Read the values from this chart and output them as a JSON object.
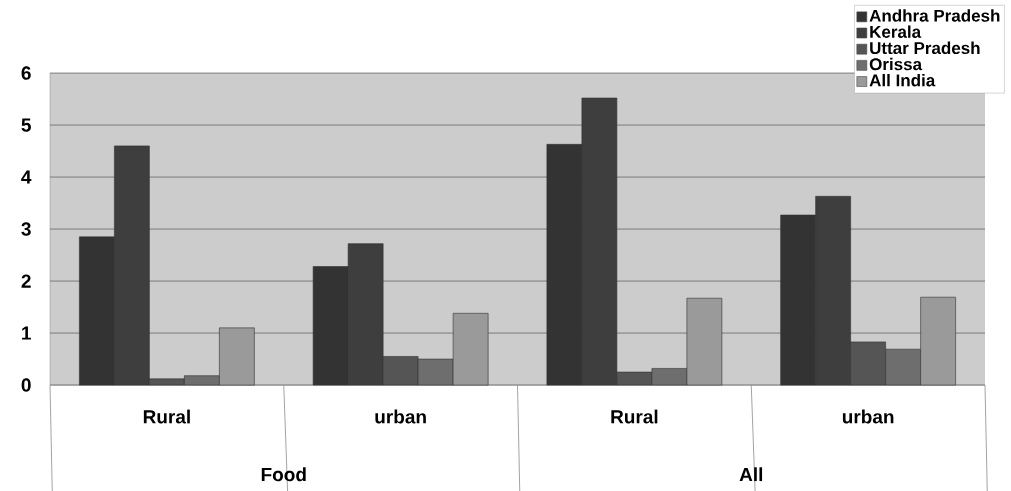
{
  "chart_data": {
    "type": "bar",
    "categories": [
      "Rural",
      "urban",
      "Rural",
      "urban"
    ],
    "annotations": [
      "Food",
      "All"
    ],
    "series": [
      {
        "name": "Andhra Pradesh",
        "color": "#333333",
        "values": [
          2.85,
          2.28,
          4.63,
          3.27
        ]
      },
      {
        "name": "Kerala",
        "color": "#3e3e3e",
        "values": [
          4.6,
          2.72,
          5.52,
          3.63
        ]
      },
      {
        "name": "Uttar Pradesh",
        "color": "#555555",
        "values": [
          0.12,
          0.55,
          0.25,
          0.83
        ]
      },
      {
        "name": "Orissa",
        "color": "#6e6e6e",
        "values": [
          0.18,
          0.5,
          0.32,
          0.69
        ]
      },
      {
        "name": "All India",
        "color": "#9a9a9a",
        "values": [
          1.1,
          1.38,
          1.67,
          1.69
        ]
      }
    ],
    "ylim": [
      0,
      6
    ],
    "yticks": [
      0,
      1,
      2,
      3,
      4,
      5,
      6
    ],
    "grid": "y",
    "legend": "top right"
  }
}
